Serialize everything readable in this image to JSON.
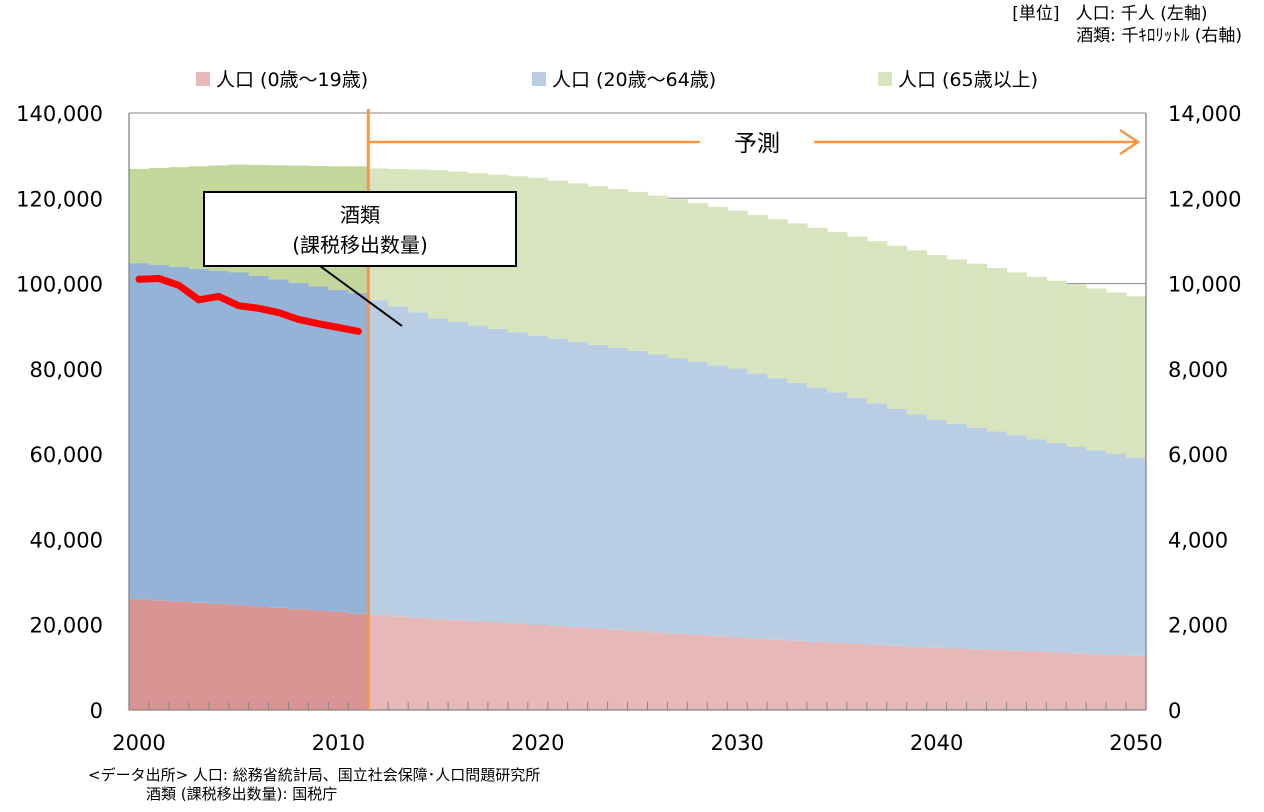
{
  "units": {
    "bracket_label": "[単位]",
    "line1": "人口: 千人 (左軸)",
    "line2": "酒類: 千ｷﾛﾘｯﾄﾙ (右軸)"
  },
  "source": {
    "line1": "<データ出所> 人口: 総務省統計局、国立社会保障･人口問題研究所",
    "line2": "酒類 (課税移出数量): 国税庁"
  },
  "colors": {
    "youth_actual": "#d99594",
    "youth_projected": "#e6b9b8",
    "working_actual": "#95b3d7",
    "working_projected": "#b9cde5",
    "elderly_actual": "#c3d69b",
    "elderly_projected": "#d7e4bd",
    "divider_arrow": "#f79646",
    "liquor_line": "#ff0000"
  },
  "chart_data": {
    "type": "area",
    "x_start": 2000,
    "x_end": 2050,
    "projection_start": 2011.5,
    "x_ticks": [
      2000,
      2010,
      2020,
      2030,
      2040,
      2050
    ],
    "left_axis": {
      "ylim": [
        0,
        140000
      ],
      "ticks": [
        "0",
        "20,000",
        "40,000",
        "60,000",
        "80,000",
        "100,000",
        "120,000",
        "140,000"
      ]
    },
    "right_axis": {
      "ylim": [
        0,
        14000
      ],
      "ticks": [
        "0",
        "2,000",
        "4,000",
        "6,000",
        "8,000",
        "10,000",
        "12,000",
        "14,000"
      ]
    },
    "legend": [
      "人口 (0歳～19歳)",
      "人口 (20歳～64歳)",
      "人口 (65歳以上)"
    ],
    "projection_label": "予測",
    "series_anchor_years": [
      2000,
      2005,
      2010,
      2011,
      2012,
      2015,
      2020,
      2025,
      2030,
      2035,
      2040,
      2045,
      2050
    ],
    "series": [
      {
        "name": "人口 (0歳～19歳)",
        "values": [
          26000,
          24600,
          23000,
          22600,
          22300,
          21300,
          20000,
          18500,
          17000,
          15700,
          14600,
          13700,
          12700
        ]
      },
      {
        "name": "人口 (20歳～64歳)",
        "values": [
          78800,
          78000,
          75500,
          75200,
          73800,
          70500,
          67800,
          65700,
          63000,
          58800,
          53400,
          49800,
          46500
        ]
      },
      {
        "name": "人口 (65歳以上)",
        "values": [
          22100,
          25300,
          29000,
          29700,
          30900,
          34800,
          37000,
          37300,
          37100,
          37600,
          38700,
          38100,
          37800
        ]
      }
    ],
    "liquor": {
      "name": "酒類 (課税移出数量)",
      "label_line1": "酒類",
      "label_line2": "(課税移出数量)",
      "x": [
        2000,
        2001,
        2002,
        2003,
        2004,
        2005,
        2006,
        2007,
        2008,
        2009,
        2010,
        2011
      ],
      "values": [
        10100,
        10120,
        9960,
        9620,
        9700,
        9480,
        9420,
        9320,
        9160,
        9060,
        8970,
        8880
      ]
    }
  }
}
